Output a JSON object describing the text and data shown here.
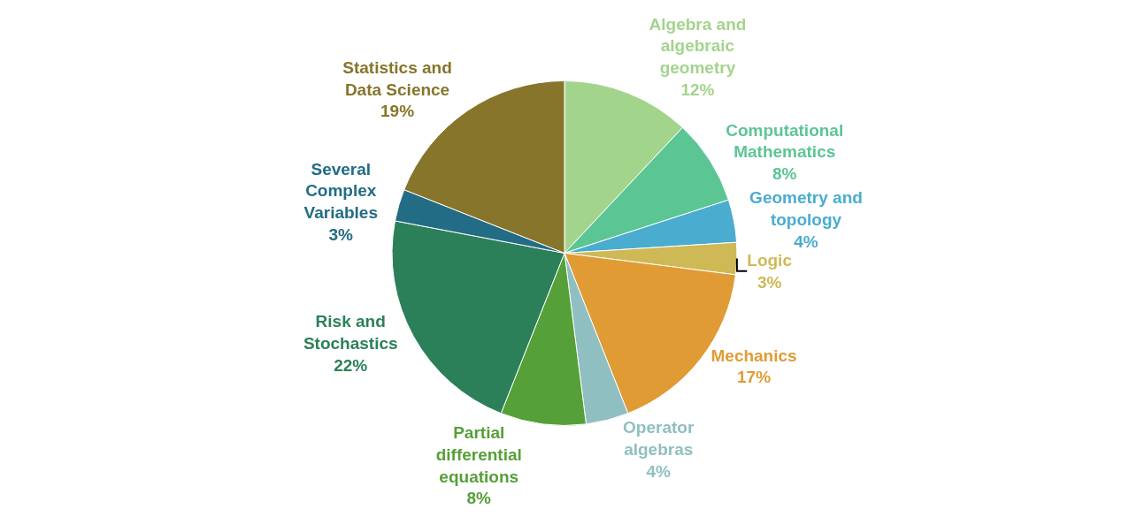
{
  "chart_data": {
    "type": "pie",
    "categories": [
      "Algebra and algebraic geometry",
      "Computational Mathematics",
      "Geometry and topology",
      "Logic",
      "Mechanics",
      "Operator algebras",
      "Partial differential equations",
      "Risk and Stochastics",
      "Several Complex Variables",
      "Statistics and Data Science"
    ],
    "values": [
      12,
      8,
      4,
      3,
      17,
      4,
      8,
      22,
      3,
      19
    ],
    "value_labels": [
      "12%",
      "8%",
      "4%",
      "3%",
      "17%",
      "4%",
      "8%",
      "22%",
      "3%",
      "19%"
    ],
    "colors": [
      "#a3d48c",
      "#5cc594",
      "#4aaccf",
      "#cfb957",
      "#e09b35",
      "#8fbfc0",
      "#55a038",
      "#2c8059",
      "#226c85",
      "#86752a"
    ],
    "legend": false
  }
}
